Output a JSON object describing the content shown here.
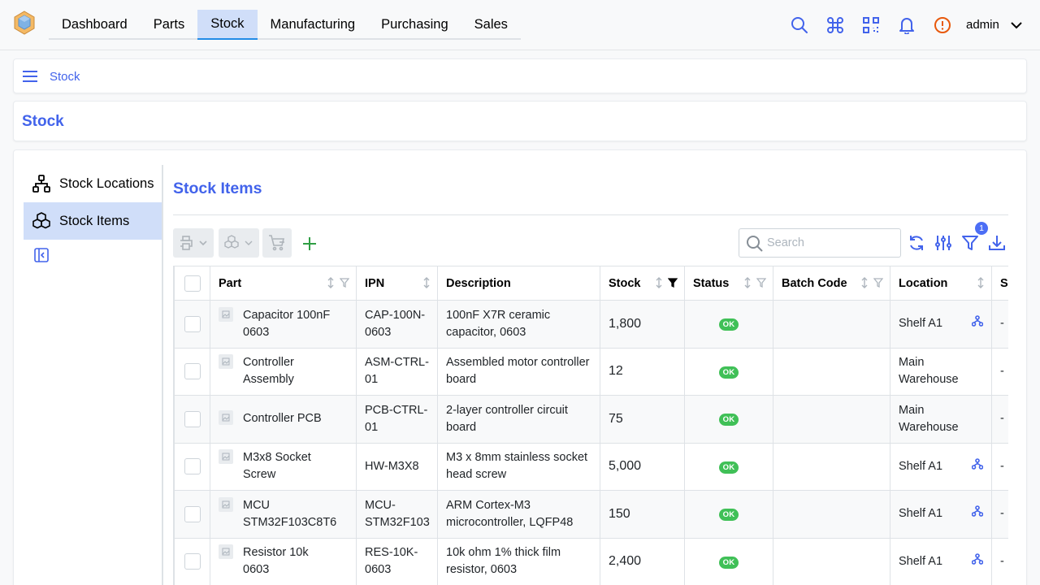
{
  "header": {
    "nav_tabs": [
      {
        "label": "Dashboard"
      },
      {
        "label": "Parts"
      },
      {
        "label": "Stock"
      },
      {
        "label": "Manufacturing"
      },
      {
        "label": "Purchasing"
      },
      {
        "label": "Sales"
      }
    ],
    "active_tab": "Stock",
    "user": "admin"
  },
  "breadcrumb": {
    "item": "Stock"
  },
  "page_title": "Stock",
  "sidebar": {
    "items": [
      {
        "label": "Stock Locations",
        "icon": "sitemap-icon"
      },
      {
        "label": "Stock Items",
        "icon": "boxes-icon"
      }
    ],
    "active": "Stock Items"
  },
  "panel": {
    "title": "Stock Items",
    "search_placeholder": "Search",
    "filter_count": "1"
  },
  "table": {
    "columns": [
      "Part",
      "IPN",
      "Description",
      "Stock",
      "Status",
      "Batch Code",
      "Location",
      "S"
    ],
    "rows": [
      {
        "part_line1": "Capacitor 100nF",
        "part_line2": "0603",
        "ipn_line1": "CAP-100N-",
        "ipn_line2": "0603",
        "desc_line1": "100nF X7R ceramic",
        "desc_line2": "capacitor, 0603",
        "stock": "1,800",
        "status": "OK",
        "batch": "",
        "loc_line1": "Shelf A1",
        "loc_line2": "",
        "loc_icon": true,
        "s": "-"
      },
      {
        "part_line1": "Controller",
        "part_line2": "Assembly",
        "ipn_line1": "ASM-CTRL-",
        "ipn_line2": "01",
        "desc_line1": "Assembled motor controller",
        "desc_line2": "board",
        "stock": "12",
        "status": "OK",
        "batch": "",
        "loc_line1": "Main",
        "loc_line2": "Warehouse",
        "loc_icon": false,
        "s": "-"
      },
      {
        "part_line1": "Controller PCB",
        "part_line2": "",
        "ipn_line1": "PCB-CTRL-",
        "ipn_line2": "01",
        "desc_line1": "2-layer controller circuit",
        "desc_line2": "board",
        "stock": "75",
        "status": "OK",
        "batch": "",
        "loc_line1": "Main",
        "loc_line2": "Warehouse",
        "loc_icon": false,
        "s": "-"
      },
      {
        "part_line1": "M3x8 Socket",
        "part_line2": "Screw",
        "ipn_line1": "HW-M3X8",
        "ipn_line2": "",
        "desc_line1": "M3 x 8mm stainless socket",
        "desc_line2": "head screw",
        "stock": "5,000",
        "status": "OK",
        "batch": "",
        "loc_line1": "Shelf A1",
        "loc_line2": "",
        "loc_icon": true,
        "s": "-"
      },
      {
        "part_line1": "MCU",
        "part_line2": "STM32F103C8T6",
        "ipn_line1": "MCU-",
        "ipn_line2": "STM32F103",
        "desc_line1": "ARM Cortex-M3",
        "desc_line2": "microcontroller, LQFP48",
        "stock": "150",
        "status": "OK",
        "batch": "",
        "loc_line1": "Shelf A1",
        "loc_line2": "",
        "loc_icon": true,
        "s": "-"
      },
      {
        "part_line1": "Resistor 10k",
        "part_line2": "0603",
        "ipn_line1": "RES-10K-",
        "ipn_line2": "0603",
        "desc_line1": "10k ohm 1% thick film",
        "desc_line2": "resistor, 0603",
        "stock": "2,400",
        "status": "OK",
        "batch": "",
        "loc_line1": "Shelf A1",
        "loc_line2": "",
        "loc_icon": true,
        "s": "-"
      }
    ]
  },
  "colors": {
    "accent": "#4263eb",
    "active_bg": "#d0def9",
    "ok_badge": "#40c057",
    "alert": "#e8590c"
  }
}
